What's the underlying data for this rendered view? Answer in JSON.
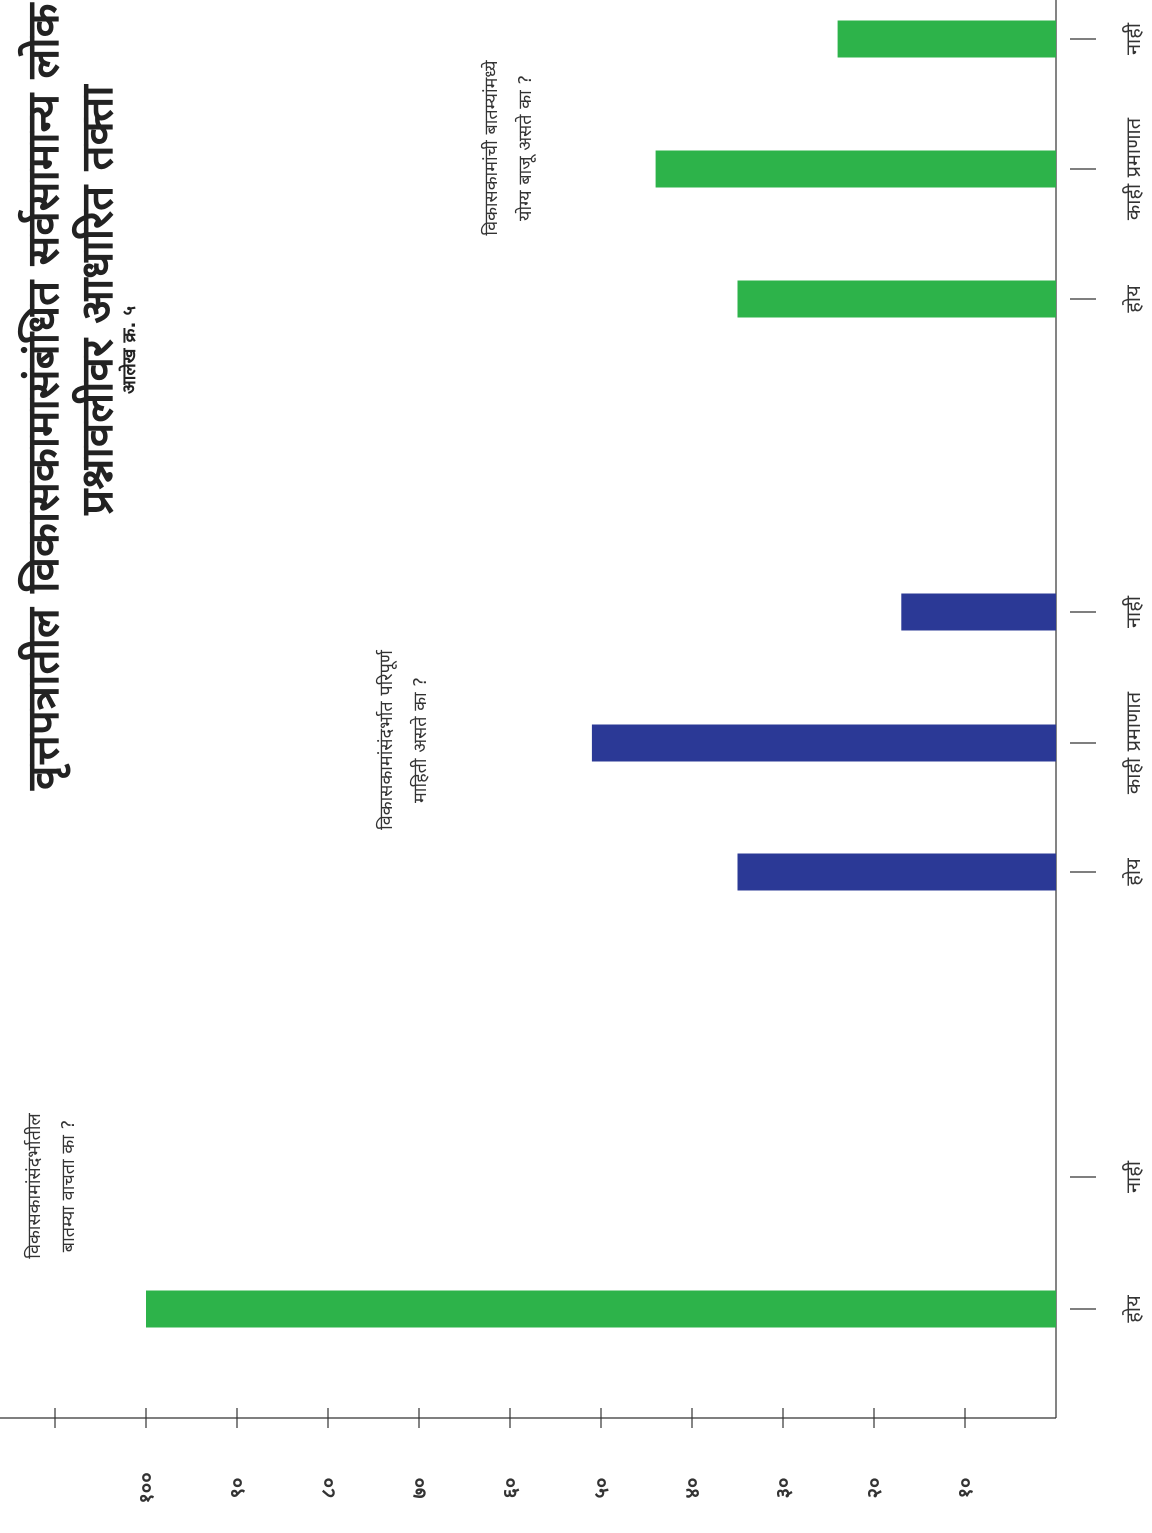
{
  "title": {
    "line1": "वृत्तपत्रातील विकासकामासंबंधित सर्वसामान्य लोक",
    "line2": "प्रश्नावलीवर आधारित तक्ता",
    "figure_label": "आलेख क्र. ५"
  },
  "colors": {
    "series_green": "#2db34a",
    "series_blue": "#2b3996",
    "axis": "#333333"
  },
  "chart_data": {
    "type": "bar",
    "orientation": "rotated-90-clockwise",
    "ylim": [
      0,
      110
    ],
    "ytick_values": [
      10,
      20,
      30,
      40,
      50,
      60,
      70,
      80,
      90,
      100
    ],
    "ytick_labels": [
      "१०",
      "२०",
      "३०",
      "४०",
      "५०",
      "६०",
      "७०",
      "८०",
      "९०",
      "१००"
    ],
    "grid": false,
    "legend": "none",
    "groups": [
      {
        "question_lines": [
          "विकासकामांसंदर्भातील",
          "बातम्या वाचता का ?"
        ],
        "color": "green",
        "categories": [
          "होय",
          "नाही"
        ],
        "values": [
          100,
          0
        ]
      },
      {
        "question_lines": [
          "विकासकामांसंदर्भात परिपूर्ण",
          "माहिती असते का ?"
        ],
        "color": "blue",
        "categories": [
          "होय",
          "काही प्रमाणात",
          "नाही"
        ],
        "values": [
          35,
          51,
          17
        ]
      },
      {
        "question_lines": [
          "विकासकामांची बातम्यांमध्ये",
          "योग्य बाजू असते का ?"
        ],
        "color": "green",
        "categories": [
          "होय",
          "काही प्रमाणात",
          "नाही"
        ],
        "values": [
          35,
          44,
          24
        ]
      }
    ]
  }
}
